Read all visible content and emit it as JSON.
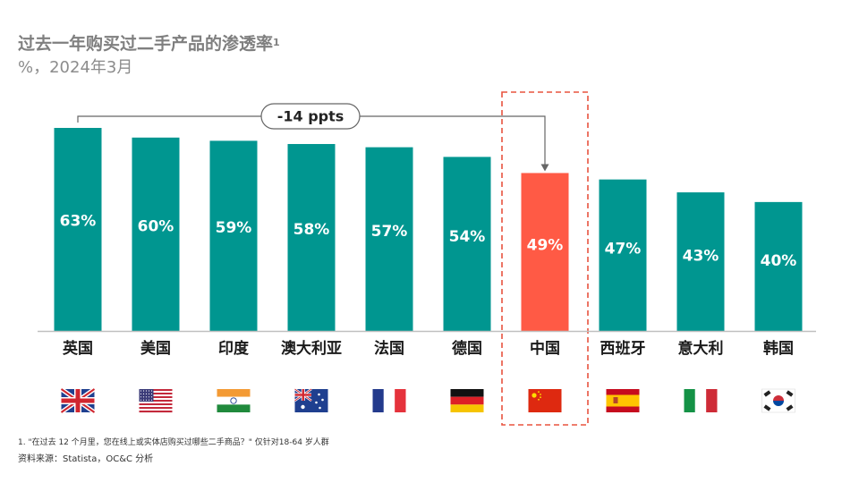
{
  "header": {
    "title": "过去一年购买过二手产品的渗透率",
    "title_sup": "1",
    "subtitle": "%，2024年3月"
  },
  "colors": {
    "bar": "#009690",
    "highlight": "#ff5a45",
    "bar_label": "#ffffff",
    "category_label": "#1a1a1a",
    "axis": "#bfbfbf",
    "connector": "#666666",
    "highlight_box": "#e8533f"
  },
  "chart_data": {
    "type": "bar",
    "categories": [
      "英国",
      "美国",
      "印度",
      "澳大利亚",
      "法国",
      "德国",
      "中国",
      "西班牙",
      "意大利",
      "韩国"
    ],
    "values": [
      63,
      60,
      59,
      58,
      57,
      54,
      49,
      47,
      43,
      40
    ],
    "data_labels": [
      "63%",
      "60%",
      "59%",
      "58%",
      "57%",
      "54%",
      "49%",
      "47%",
      "43%",
      "40%"
    ],
    "flags": [
      "uk-flag-icon",
      "us-flag-icon",
      "india-flag-icon",
      "australia-flag-icon",
      "france-flag-icon",
      "germany-flag-icon",
      "china-flag-icon",
      "spain-flag-icon",
      "italy-flag-icon",
      "korea-flag-icon"
    ],
    "highlight_index": 6,
    "annotation": {
      "text": "-14 ppts",
      "from_index": 0,
      "to_index": 6
    },
    "ylim": [
      0,
      63
    ],
    "grid": false,
    "legend": "none"
  },
  "footnote": "1. \"在过去 12 个月里，您在线上或实体店购买过哪些二手商品？\" 仅针对18-64 岁人群",
  "source": "资料来源：Statista，OC&C 分析"
}
